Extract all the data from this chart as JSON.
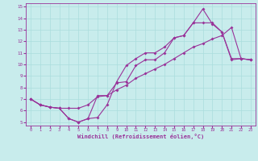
{
  "xlabel": "Windchill (Refroidissement éolien,°C)",
  "bg_color": "#c8ecec",
  "line_color": "#993399",
  "grid_color": "#aadddd",
  "xlim": [
    -0.5,
    23.5
  ],
  "ylim": [
    4.7,
    15.3
  ],
  "xticks": [
    0,
    1,
    2,
    3,
    4,
    5,
    6,
    7,
    8,
    9,
    10,
    11,
    12,
    13,
    14,
    15,
    16,
    17,
    18,
    19,
    20,
    21,
    22,
    23
  ],
  "yticks": [
    5,
    6,
    7,
    8,
    9,
    10,
    11,
    12,
    13,
    14,
    15
  ],
  "line1_x": [
    0,
    1,
    2,
    3,
    4,
    5,
    6,
    7,
    8,
    9,
    10,
    11,
    12,
    13,
    14,
    15,
    16,
    17,
    18,
    19,
    20,
    21,
    22,
    23
  ],
  "line1_y": [
    7.0,
    6.5,
    6.3,
    6.2,
    5.3,
    5.0,
    5.3,
    5.4,
    6.5,
    8.5,
    9.9,
    10.5,
    11.0,
    11.0,
    11.5,
    12.3,
    12.5,
    13.6,
    14.8,
    13.5,
    12.8,
    10.5,
    10.5,
    10.4
  ],
  "line2_x": [
    0,
    1,
    2,
    3,
    4,
    5,
    6,
    7,
    8,
    9,
    10,
    11,
    12,
    13,
    14,
    15,
    16,
    17,
    18,
    19,
    20,
    21,
    22,
    23
  ],
  "line2_y": [
    7.0,
    6.5,
    6.3,
    6.2,
    5.3,
    5.0,
    5.3,
    7.3,
    7.3,
    8.4,
    8.5,
    9.9,
    10.4,
    10.4,
    11.0,
    12.3,
    12.5,
    13.6,
    13.6,
    13.6,
    12.8,
    10.4,
    10.5,
    10.4
  ],
  "line3_x": [
    0,
    1,
    2,
    3,
    4,
    5,
    6,
    7,
    8,
    9,
    10,
    11,
    12,
    13,
    14,
    15,
    16,
    17,
    18,
    19,
    20,
    21,
    22,
    23
  ],
  "line3_y": [
    7.0,
    6.5,
    6.3,
    6.2,
    6.2,
    6.2,
    6.5,
    7.2,
    7.3,
    7.8,
    8.2,
    8.8,
    9.2,
    9.6,
    10.0,
    10.5,
    11.0,
    11.5,
    11.8,
    12.2,
    12.5,
    13.2,
    10.5,
    10.4
  ],
  "marker": "D",
  "markersize": 2.0,
  "linewidth": 0.8
}
